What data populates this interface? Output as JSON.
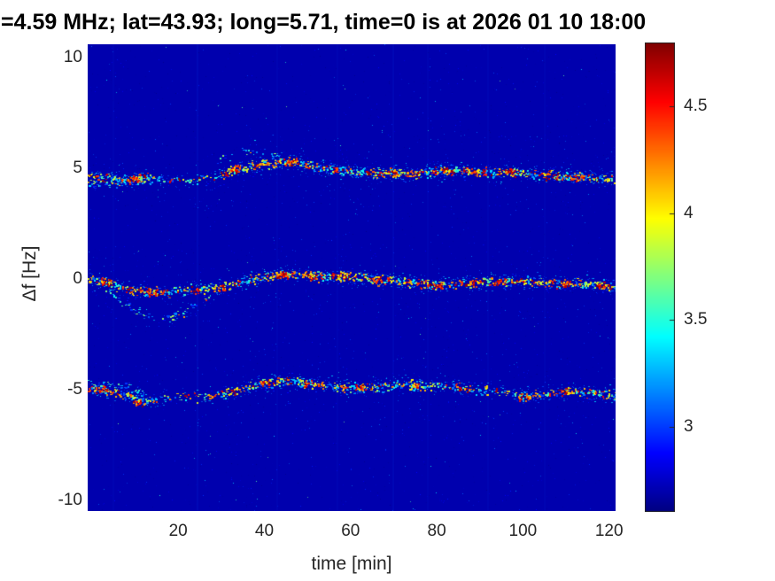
{
  "chart_data": {
    "type": "heatmap",
    "title": "=4.59 MHz;  lat=43.93; long=5.71, time=0 is at 2026 01 10 18:00",
    "xlabel": "time [min]",
    "ylabel": "Δf [Hz]",
    "xlim": [
      -1,
      121.5
    ],
    "ylim": [
      -10.5,
      10.6
    ],
    "xticks": [
      20,
      40,
      60,
      80,
      100,
      120
    ],
    "yticks": [
      10,
      5,
      0,
      -5,
      -10
    ],
    "grid": false,
    "colormap": "jet",
    "background_value": 2.7,
    "colorbar": {
      "position": "right",
      "vmin": 2.6,
      "vmax": 4.8,
      "ticks": [
        3,
        3.5,
        4,
        4.5
      ]
    },
    "seed": 42,
    "series": [
      {
        "name": "upper-doppler-trace",
        "style": "main",
        "red_weight": 0.3,
        "points": [
          [
            -1,
            4.6
          ],
          [
            3,
            4.55
          ],
          [
            6,
            4.45
          ],
          [
            9,
            4.5
          ],
          [
            12,
            4.6
          ],
          [
            15,
            4.55
          ],
          [
            18,
            4.5
          ],
          [
            22,
            4.5
          ],
          [
            26,
            4.55
          ],
          [
            30,
            4.7
          ],
          [
            34,
            5.0
          ],
          [
            38,
            5.15
          ],
          [
            42,
            5.25
          ],
          [
            46,
            5.35
          ],
          [
            50,
            5.15
          ],
          [
            54,
            5.0
          ],
          [
            58,
            4.9
          ],
          [
            62,
            4.85
          ],
          [
            66,
            4.8
          ],
          [
            70,
            4.8
          ],
          [
            74,
            4.75
          ],
          [
            78,
            4.85
          ],
          [
            82,
            4.9
          ],
          [
            86,
            4.9
          ],
          [
            90,
            4.85
          ],
          [
            94,
            4.8
          ],
          [
            98,
            4.85
          ],
          [
            102,
            4.75
          ],
          [
            106,
            4.7
          ],
          [
            110,
            4.65
          ],
          [
            114,
            4.6
          ],
          [
            118,
            4.55
          ],
          [
            121.5,
            4.5
          ]
        ],
        "density": [
          [
            -1,
            0.8
          ],
          [
            8,
            0.9
          ],
          [
            13,
            0.85
          ],
          [
            16,
            0.35
          ],
          [
            24,
            0.35
          ],
          [
            30,
            0.7
          ],
          [
            38,
            0.85
          ],
          [
            48,
            0.9
          ],
          [
            58,
            0.85
          ],
          [
            68,
            0.8
          ],
          [
            78,
            0.9
          ],
          [
            88,
            0.9
          ],
          [
            98,
            0.85
          ],
          [
            108,
            0.8
          ],
          [
            121.5,
            0.85
          ]
        ],
        "hotspots": [
          [
            10,
            4.55,
            1.5,
            26
          ],
          [
            33,
            5.0,
            1.2,
            20
          ],
          [
            46,
            5.3,
            1.5,
            24
          ],
          [
            70,
            4.8,
            1.0,
            16
          ],
          [
            83,
            4.9,
            1.3,
            22
          ],
          [
            97,
            4.85,
            1.2,
            20
          ],
          [
            113,
            4.6,
            1.2,
            18
          ]
        ]
      },
      {
        "name": "upper-secondary-branch",
        "style": "faint",
        "red_weight": 0.08,
        "points": [
          [
            -1,
            4.35
          ],
          [
            3,
            4.3
          ],
          [
            7,
            4.35
          ],
          [
            10,
            4.45
          ],
          [
            13,
            4.55
          ]
        ],
        "density": [
          [
            -1,
            0.55
          ],
          [
            13,
            0.55
          ]
        ],
        "hotspots": []
      },
      {
        "name": "upper-arc-branch",
        "style": "faint",
        "red_weight": 0.03,
        "points": [
          [
            29,
            5.4
          ],
          [
            33,
            5.65
          ],
          [
            37,
            5.85
          ],
          [
            41,
            5.7
          ],
          [
            45,
            5.5
          ]
        ],
        "density": [
          [
            29,
            0.3
          ],
          [
            45,
            0.3
          ]
        ],
        "hotspots": []
      },
      {
        "name": "center-doppler-trace",
        "style": "main",
        "red_weight": 0.36,
        "points": [
          [
            -1,
            0.0
          ],
          [
            2,
            -0.1
          ],
          [
            6,
            -0.35
          ],
          [
            10,
            -0.55
          ],
          [
            14,
            -0.6
          ],
          [
            18,
            -0.55
          ],
          [
            22,
            -0.45
          ],
          [
            26,
            -0.45
          ],
          [
            30,
            -0.35
          ],
          [
            34,
            -0.15
          ],
          [
            38,
            0.0
          ],
          [
            42,
            0.15
          ],
          [
            46,
            0.25
          ],
          [
            50,
            0.2
          ],
          [
            54,
            0.1
          ],
          [
            58,
            0.15
          ],
          [
            62,
            0.05
          ],
          [
            66,
            -0.05
          ],
          [
            70,
            -0.05
          ],
          [
            74,
            -0.15
          ],
          [
            78,
            -0.25
          ],
          [
            82,
            -0.3
          ],
          [
            86,
            -0.2
          ],
          [
            90,
            -0.1
          ],
          [
            94,
            -0.15
          ],
          [
            98,
            -0.1
          ],
          [
            102,
            -0.1
          ],
          [
            106,
            -0.2
          ],
          [
            110,
            -0.15
          ],
          [
            114,
            -0.2
          ],
          [
            118,
            -0.25
          ],
          [
            121.5,
            -0.35
          ]
        ],
        "density": [
          [
            -1,
            0.9
          ],
          [
            8,
            0.75
          ],
          [
            16,
            0.6
          ],
          [
            24,
            0.65
          ],
          [
            32,
            0.8
          ],
          [
            42,
            0.95
          ],
          [
            52,
            0.9
          ],
          [
            62,
            0.85
          ],
          [
            72,
            0.85
          ],
          [
            82,
            0.8
          ],
          [
            92,
            0.8
          ],
          [
            102,
            0.85
          ],
          [
            112,
            0.8
          ],
          [
            121.5,
            0.8
          ]
        ],
        "hotspots": [
          [
            3,
            -0.1,
            1.5,
            22
          ],
          [
            14,
            -0.6,
            1.2,
            20
          ],
          [
            30,
            -0.4,
            1.0,
            16
          ],
          [
            44,
            0.2,
            1.5,
            26
          ],
          [
            51,
            0.15,
            1.2,
            22
          ],
          [
            58,
            0.1,
            1.0,
            18
          ],
          [
            66,
            -0.05,
            1.0,
            16
          ],
          [
            80,
            -0.3,
            1.2,
            18
          ],
          [
            95,
            -0.1,
            1.2,
            20
          ],
          [
            110,
            -0.2,
            1.0,
            16
          ],
          [
            118,
            -0.3,
            1.0,
            16
          ]
        ]
      },
      {
        "name": "center-descending-branch",
        "style": "faint",
        "red_weight": 0.05,
        "points": [
          [
            3,
            -0.5
          ],
          [
            6,
            -0.9
          ],
          [
            9,
            -1.3
          ],
          [
            12,
            -1.6
          ],
          [
            15,
            -1.8
          ],
          [
            18,
            -1.75
          ],
          [
            21,
            -1.5
          ],
          [
            24,
            -1.1
          ],
          [
            27,
            -0.7
          ]
        ],
        "density": [
          [
            3,
            0.4
          ],
          [
            27,
            0.4
          ]
        ],
        "hotspots": []
      },
      {
        "name": "lower-doppler-trace",
        "style": "main",
        "red_weight": 0.2,
        "points": [
          [
            -1,
            -4.95
          ],
          [
            2,
            -5.0
          ],
          [
            5,
            -5.1
          ],
          [
            8,
            -5.25
          ],
          [
            11,
            -5.45
          ],
          [
            13,
            -5.5
          ],
          [
            16,
            -5.4
          ],
          [
            20,
            -5.35
          ],
          [
            24,
            -5.3
          ],
          [
            28,
            -5.25
          ],
          [
            32,
            -5.1
          ],
          [
            36,
            -4.9
          ],
          [
            40,
            -4.7
          ],
          [
            44,
            -4.6
          ],
          [
            48,
            -4.65
          ],
          [
            52,
            -4.75
          ],
          [
            56,
            -4.8
          ],
          [
            60,
            -4.9
          ],
          [
            64,
            -4.9
          ],
          [
            68,
            -4.85
          ],
          [
            72,
            -4.8
          ],
          [
            76,
            -4.8
          ],
          [
            80,
            -4.85
          ],
          [
            84,
            -4.9
          ],
          [
            88,
            -4.95
          ],
          [
            92,
            -5.0
          ],
          [
            96,
            -5.1
          ],
          [
            100,
            -5.3
          ],
          [
            104,
            -5.25
          ],
          [
            108,
            -5.1
          ],
          [
            112,
            -5.1
          ],
          [
            116,
            -5.15
          ],
          [
            121.5,
            -5.25
          ]
        ],
        "density": [
          [
            -1,
            0.85
          ],
          [
            6,
            0.75
          ],
          [
            12,
            0.8
          ],
          [
            16,
            0.3
          ],
          [
            24,
            0.35
          ],
          [
            30,
            0.55
          ],
          [
            38,
            0.8
          ],
          [
            50,
            0.8
          ],
          [
            62,
            0.7
          ],
          [
            74,
            0.75
          ],
          [
            86,
            0.5
          ],
          [
            94,
            0.55
          ],
          [
            102,
            0.8
          ],
          [
            112,
            0.7
          ],
          [
            121.5,
            0.7
          ]
        ],
        "hotspots": [
          [
            2,
            -4.95,
            1.3,
            20
          ],
          [
            10.5,
            -5.55,
            1.0,
            18
          ],
          [
            40,
            -4.65,
            1.3,
            18
          ],
          [
            50,
            -4.75,
            1.0,
            14
          ],
          [
            62,
            -4.9,
            1.0,
            14
          ],
          [
            75,
            -4.8,
            1.2,
            16
          ],
          [
            100,
            -5.3,
            1.2,
            18
          ],
          [
            110,
            -5.1,
            1.0,
            14
          ]
        ]
      },
      {
        "name": "lower-loop-branch",
        "style": "faint",
        "red_weight": 0.06,
        "points": [
          [
            -1,
            -4.75
          ],
          [
            3,
            -4.7
          ],
          [
            6,
            -4.8
          ],
          [
            9,
            -4.95
          ],
          [
            12,
            -5.25
          ]
        ],
        "density": [
          [
            -1,
            0.5
          ],
          [
            12,
            0.5
          ]
        ],
        "hotspots": []
      }
    ],
    "vertical_streaks": [
      [
        5,
        0.05
      ],
      [
        24.5,
        0.1
      ],
      [
        43,
        0.06
      ],
      [
        57,
        0.05
      ],
      [
        70,
        0.09
      ],
      [
        78,
        0.05
      ],
      [
        92,
        0.06
      ],
      [
        105,
        0.05
      ]
    ],
    "noise_dots": {
      "count": 2600,
      "vmin": 2.62,
      "vmax": 3.25,
      "rare_cyan_count": 120
    }
  }
}
